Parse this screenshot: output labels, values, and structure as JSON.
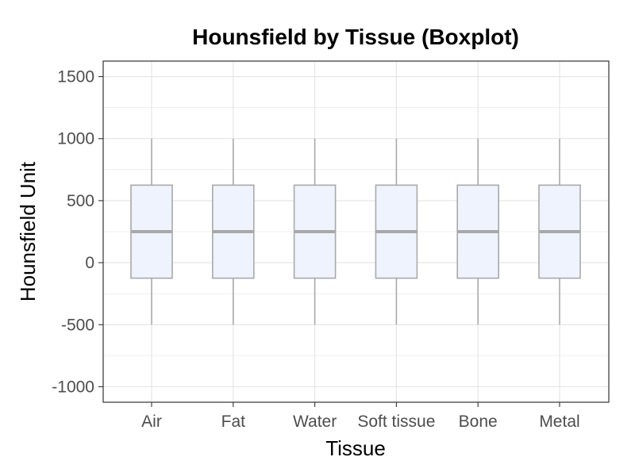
{
  "chart_data": {
    "type": "box",
    "title": "Hounsfield by Tissue (Boxplot)",
    "xlabel": "Tissue",
    "ylabel": "Hounsfield Unit",
    "categories": [
      "Air",
      "Fat",
      "Water",
      "Soft tissue",
      "Bone",
      "Metal"
    ],
    "boxes": [
      {
        "min": -500,
        "q1": -125,
        "median": 250,
        "q3": 625,
        "max": 1000
      },
      {
        "min": -500,
        "q1": -125,
        "median": 250,
        "q3": 625,
        "max": 1000
      },
      {
        "min": -500,
        "q1": -125,
        "median": 250,
        "q3": 625,
        "max": 1000
      },
      {
        "min": -500,
        "q1": -125,
        "median": 250,
        "q3": 625,
        "max": 1000
      },
      {
        "min": -500,
        "q1": -125,
        "median": 250,
        "q3": 625,
        "max": 1000
      },
      {
        "min": -500,
        "q1": -125,
        "median": 250,
        "q3": 625,
        "max": 1000
      }
    ],
    "yticks": [
      -1000,
      -500,
      0,
      500,
      1000,
      1500
    ],
    "ytick_labels": [
      "-1000",
      "-500",
      "0",
      "500",
      "1000",
      "1500"
    ],
    "ylim": [
      -1125,
      1625
    ],
    "grid": true,
    "legend": "none",
    "colors": {
      "box_fill": "#eef3fd",
      "box_stroke": "#a9a9a9",
      "median": "#a9a9a9",
      "whisker": "#a9a9a9",
      "grid": "#e3e3e3",
      "panel_border": "#333333"
    }
  }
}
